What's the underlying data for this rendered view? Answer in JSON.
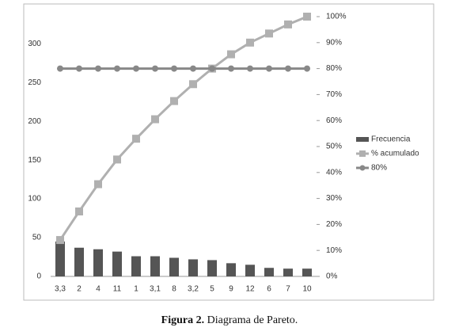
{
  "chart_data": {
    "type": "bar",
    "categories": [
      "3,3",
      "2",
      "4",
      "11",
      "1",
      "3,1",
      "8",
      "3,2",
      "5",
      "9",
      "12",
      "6",
      "7",
      "10"
    ],
    "series": [
      {
        "name": "Frecuencia",
        "type": "bar",
        "color": "#555555",
        "values": [
          45,
          37,
          35,
          32,
          26,
          26,
          24,
          22,
          21,
          17,
          15,
          11,
          10,
          10
        ]
      },
      {
        "name": "% acumulado",
        "type": "line",
        "marker": "square",
        "axis": "y2",
        "color": "#b0b0b0",
        "values": [
          14,
          25,
          35.5,
          45,
          53,
          60.5,
          67.5,
          74,
          80,
          85.5,
          90,
          93.5,
          97,
          100
        ]
      },
      {
        "name": "80%",
        "type": "line",
        "marker": "circle",
        "axis": "y2",
        "color": "#888888",
        "values": [
          80,
          80,
          80,
          80,
          80,
          80,
          80,
          80,
          80,
          80,
          80,
          80,
          80,
          80
        ]
      }
    ],
    "ylim": [
      0,
      335
    ],
    "yticks": [
      0,
      50,
      100,
      150,
      200,
      250,
      300
    ],
    "y2lim": [
      0,
      100
    ],
    "y2ticks": [
      {
        "value": 0,
        "label": "0%"
      },
      {
        "value": 10,
        "label": "10%"
      },
      {
        "value": 20,
        "label": "20%"
      },
      {
        "value": 30,
        "label": "30%"
      },
      {
        "value": 40,
        "label": "40%"
      },
      {
        "value": 50,
        "label": "50%"
      },
      {
        "value": 60,
        "label": "60%"
      },
      {
        "value": 70,
        "label": "70%"
      },
      {
        "value": 80,
        "label": "80%"
      },
      {
        "value": 90,
        "label": "90%"
      },
      {
        "value": 100,
        "label": "100%"
      }
    ],
    "grid": false,
    "legend": "right"
  },
  "figure_caption": {
    "label": "Figura 2.",
    "text": "Diagrama de Pareto."
  }
}
